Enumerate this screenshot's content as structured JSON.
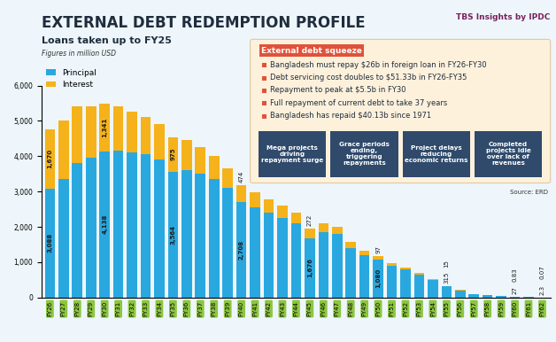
{
  "chart_data": {
    "type": "bar",
    "title": "EXTERNAL DEBT REDEMPTION PROFILE",
    "subtitle": "Loans taken up to FY25",
    "note": "Figures in million USD",
    "branding": "TBS Insights by IPDC",
    "source": "Source: ERD",
    "categories": [
      "FY26",
      "FY27",
      "FY28",
      "FY29",
      "FY30",
      "FY31",
      "FY32",
      "FY33",
      "FY34",
      "FY35",
      "FY36",
      "FY37",
      "FY38",
      "FY39",
      "FY40",
      "FY41",
      "FY42",
      "FY43",
      "FY44",
      "FY45",
      "FY46",
      "FY47",
      "FY48",
      "FY49",
      "FY50",
      "FY51",
      "FY52",
      "FY53",
      "FY54",
      "FY55",
      "FY56",
      "FY57",
      "FY58",
      "FY59",
      "FY60",
      "FY61",
      "FY62"
    ],
    "series": [
      {
        "name": "Principal",
        "color": "#29a8e0",
        "values": [
          3088,
          3350,
          3800,
          3950,
          4138,
          4150,
          4100,
          4050,
          3900,
          3564,
          3600,
          3500,
          3350,
          3100,
          2708,
          2550,
          2400,
          2250,
          2100,
          1676,
          1850,
          1800,
          1400,
          1200,
          1080,
          900,
          800,
          650,
          500,
          315,
          200,
          100,
          60,
          40,
          27,
          10,
          2.3
        ],
        "value_labels": [
          "3,088",
          null,
          null,
          null,
          "4,138",
          null,
          null,
          null,
          null,
          "3,564",
          null,
          null,
          null,
          null,
          "2,708",
          null,
          null,
          null,
          null,
          "1,676",
          null,
          null,
          null,
          null,
          "1,080",
          null,
          null,
          null,
          null,
          "315",
          null,
          null,
          null,
          null,
          "27",
          null,
          "2.3"
        ]
      },
      {
        "name": "Interest",
        "color": "#f5b21b",
        "values": [
          1670,
          1650,
          1600,
          1450,
          1341,
          1250,
          1150,
          1050,
          1000,
          975,
          850,
          750,
          650,
          550,
          474,
          430,
          390,
          350,
          310,
          272,
          240,
          210,
          170,
          130,
          97,
          80,
          60,
          45,
          30,
          15,
          10,
          5,
          3,
          2,
          0.83,
          0.3,
          0.07
        ],
        "value_labels": [
          "1,670",
          null,
          null,
          null,
          "1,341",
          null,
          null,
          null,
          null,
          "975",
          null,
          null,
          null,
          null,
          "474",
          null,
          null,
          null,
          null,
          "272",
          null,
          null,
          null,
          null,
          "97",
          null,
          null,
          null,
          null,
          "15",
          null,
          null,
          null,
          null,
          "0.83",
          null,
          "0.07"
        ]
      }
    ],
    "ylim": [
      0,
      6000
    ],
    "yticks": [
      0,
      {
        "value": 1000,
        "label": "1,000"
      },
      {
        "value": 2000,
        "label": "2,000"
      },
      {
        "value": 3000,
        "label": "3,000"
      },
      {
        "value": 4000,
        "label": "4,000"
      },
      {
        "value": 5000,
        "label": "5,000"
      },
      {
        "value": 6000,
        "label": "6,000"
      }
    ],
    "stacked": true,
    "data_labels": true,
    "legend": "upper left",
    "grid": false,
    "callout": {
      "title": "External debt squeeze",
      "points": [
        "Bangladesh must repay $26b in foreign loan in FY26-FY30",
        "Debt servicing cost doubles to $51.33b in FY26-FY35",
        "Repayment to peak at $5.5b in FY30",
        "Full repayment of current debt to take 37 years",
        "Bangladesh has repaid $40.13b since 1971"
      ],
      "boxes": [
        "Mega projects driving repayment surge",
        "Grace periods ending, triggering repayments",
        "Project delays reducing economic returns",
        "Completed projects idle over lack of revenues"
      ]
    }
  }
}
